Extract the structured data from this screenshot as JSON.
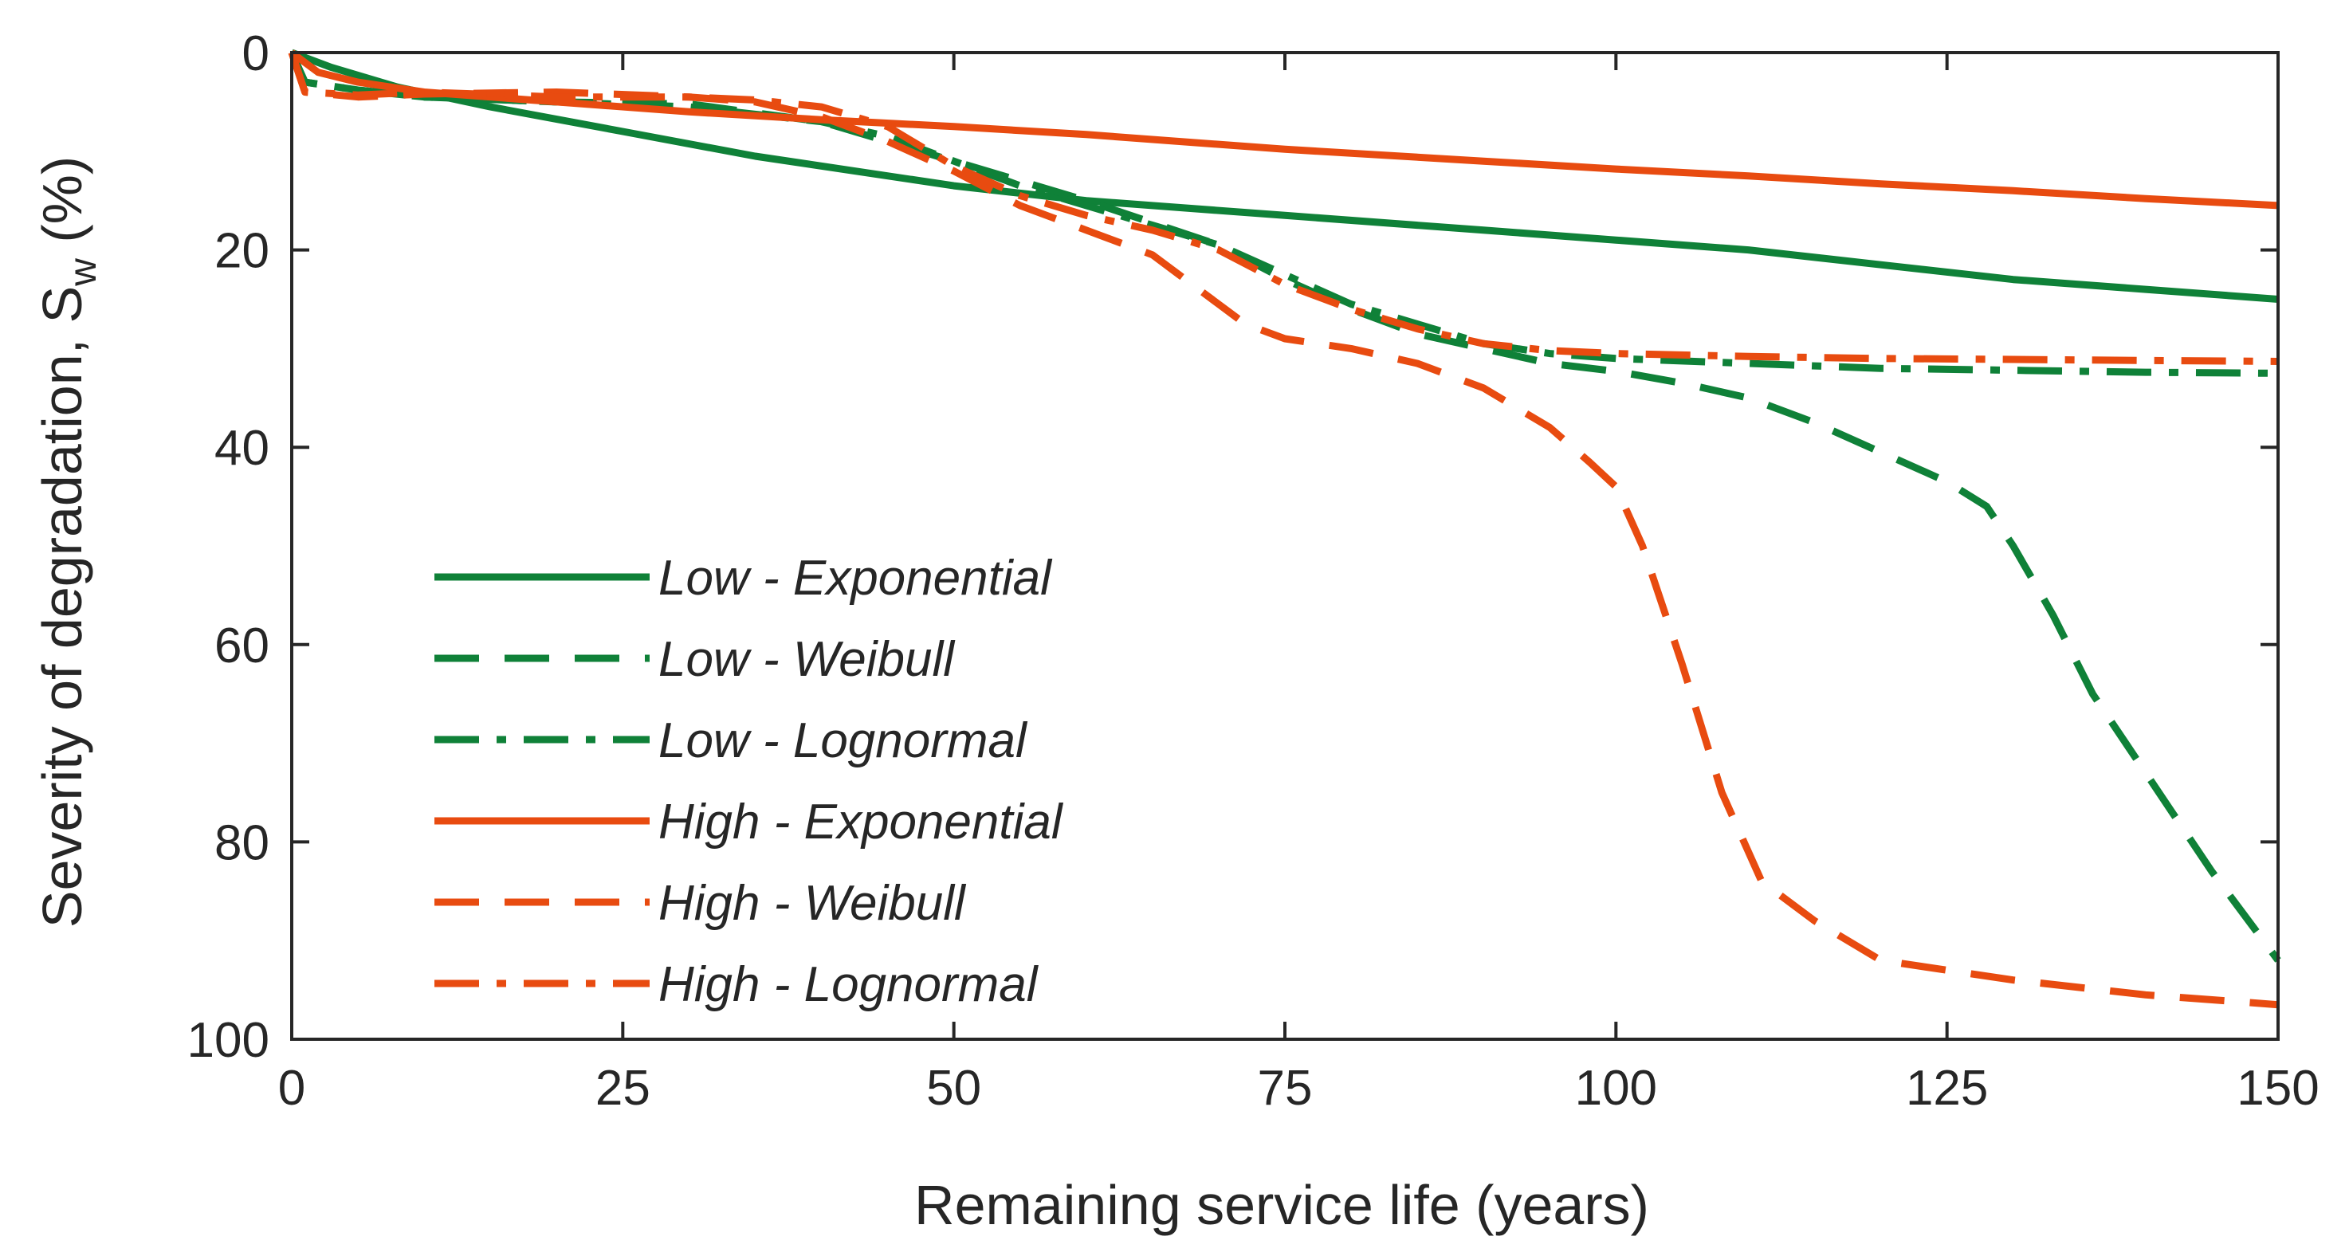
{
  "chart_data": {
    "type": "line",
    "title": "",
    "xlabel": "Remaining service life (years)",
    "ylabel_main": "Severity of degradation, S",
    "ylabel_sub": "w",
    "ylabel_unit": " (%)",
    "xlim": [
      0,
      150
    ],
    "ylim": [
      0,
      100
    ],
    "y_reversed": true,
    "x_ticks": [
      0,
      25,
      50,
      75,
      100,
      125,
      150
    ],
    "x_tick_labels": [
      "0",
      "25",
      "50",
      "75",
      "100",
      "125",
      "150"
    ],
    "y_ticks": [
      0,
      20,
      40,
      60,
      80,
      100
    ],
    "y_tick_labels": [
      "0",
      "20",
      "40",
      "60",
      "80",
      "100"
    ],
    "grid": false,
    "legend_position": "center-left",
    "colors": {
      "green": "#0f8138",
      "orange": "#e84b10",
      "axis": "#262626"
    },
    "series": [
      {
        "name": "Low - Exponential",
        "color": "#0f8138",
        "style": "solid",
        "x": [
          0,
          3,
          8,
          15,
          25,
          35,
          50,
          60,
          75,
          90,
          100,
          110,
          120,
          130,
          140,
          150
        ],
        "y": [
          0,
          1.5,
          3.5,
          5.5,
          8,
          10.5,
          13.5,
          15,
          16.5,
          18,
          19,
          20,
          21.5,
          23,
          24,
          25
        ]
      },
      {
        "name": "Low - Weibull",
        "color": "#0f8138",
        "style": "dash",
        "x": [
          0,
          1,
          5,
          10,
          20,
          30,
          40,
          50,
          60,
          70,
          75,
          80,
          85,
          90,
          95,
          100,
          105,
          110,
          115,
          120,
          125,
          128,
          130,
          133,
          136,
          140,
          145,
          150
        ],
        "y": [
          0,
          3,
          3.8,
          4.5,
          5,
          5.2,
          7,
          11,
          15,
          19.5,
          23,
          26,
          28.5,
          30,
          31.5,
          32.3,
          33.5,
          35,
          37.5,
          40.5,
          43.5,
          46,
          50,
          57,
          65,
          73,
          83,
          92
        ]
      },
      {
        "name": "Low - Lognormal",
        "color": "#0f8138",
        "style": "dashdot",
        "x": [
          0,
          1,
          5,
          10,
          20,
          30,
          40,
          45,
          50,
          55,
          60,
          65,
          70,
          75,
          80,
          85,
          90,
          95,
          100,
          110,
          120,
          130,
          140,
          150
        ],
        "y": [
          0,
          3,
          3.8,
          4.5,
          5,
          5.5,
          7,
          8.5,
          11,
          13.5,
          15.5,
          17.5,
          19.5,
          22.5,
          25.5,
          27.5,
          29.5,
          30.5,
          31,
          31.5,
          32,
          32.2,
          32.4,
          32.5
        ]
      },
      {
        "name": "High - Exponential",
        "color": "#e84b10",
        "style": "solid",
        "x": [
          0,
          2,
          5,
          10,
          20,
          30,
          40,
          50,
          60,
          75,
          90,
          100,
          110,
          120,
          130,
          140,
          150
        ],
        "y": [
          0,
          2,
          3,
          4,
          5,
          6,
          6.8,
          7.5,
          8.3,
          9.8,
          11,
          11.8,
          12.5,
          13.3,
          14,
          14.8,
          15.5
        ]
      },
      {
        "name": "High - Weibull",
        "color": "#e84b10",
        "style": "dash",
        "x": [
          0,
          0.5,
          1,
          5,
          10,
          20,
          30,
          35,
          40,
          45,
          50,
          55,
          60,
          65,
          67,
          70,
          72,
          75,
          80,
          85,
          90,
          95,
          98,
          100,
          102,
          105,
          108,
          111,
          115,
          120,
          130,
          140,
          150
        ],
        "y": [
          0,
          2,
          4,
          4.5,
          4.2,
          4,
          4.5,
          5,
          6.5,
          9,
          12,
          15.5,
          18,
          20.5,
          22.5,
          25.5,
          27.5,
          29,
          30,
          31.5,
          34,
          38,
          41.5,
          44,
          50,
          62,
          75,
          84,
          88,
          92,
          94,
          95.5,
          96.5
        ]
      },
      {
        "name": "High - Lognormal",
        "color": "#e84b10",
        "style": "dashdot",
        "x": [
          0,
          0.5,
          1,
          5,
          10,
          20,
          30,
          35,
          40,
          45,
          50,
          55,
          60,
          65,
          70,
          75,
          80,
          85,
          90,
          95,
          100,
          110,
          120,
          130,
          140,
          150
        ],
        "y": [
          0,
          2,
          4,
          4.3,
          4,
          4.5,
          4.5,
          4.8,
          5.5,
          7.5,
          11.5,
          14.5,
          16.5,
          18,
          20,
          23.5,
          26,
          28,
          29.5,
          30.2,
          30.5,
          30.8,
          31,
          31.1,
          31.2,
          31.3
        ]
      }
    ]
  }
}
